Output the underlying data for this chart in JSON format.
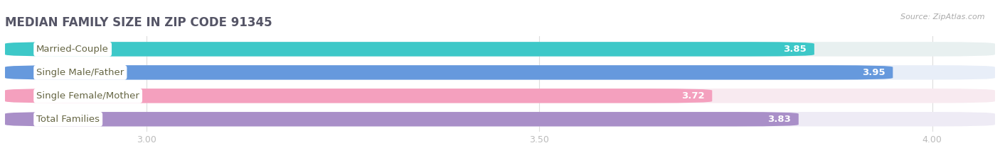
{
  "title": "MEDIAN FAMILY SIZE IN ZIP CODE 91345",
  "source": "Source: ZipAtlas.com",
  "categories": [
    "Married-Couple",
    "Single Male/Father",
    "Single Female/Mother",
    "Total Families"
  ],
  "values": [
    3.85,
    3.95,
    3.72,
    3.83
  ],
  "bar_colors": [
    "#3dc8c8",
    "#6699dd",
    "#f4a0be",
    "#a98fc8"
  ],
  "bar_bg_colors": [
    "#e8f0f0",
    "#e8eef8",
    "#f8eaf0",
    "#eeebf5"
  ],
  "text_color": "#555555",
  "label_text_color": "#666644",
  "xlim_min": 2.82,
  "xlim_max": 4.08,
  "xticks": [
    3.0,
    3.5,
    4.0
  ],
  "xtick_labels": [
    "3.00",
    "3.50",
    "4.00"
  ],
  "label_fontsize": 9.5,
  "value_fontsize": 9.5,
  "title_fontsize": 12,
  "bar_height": 0.62,
  "background_color": "#ffffff"
}
